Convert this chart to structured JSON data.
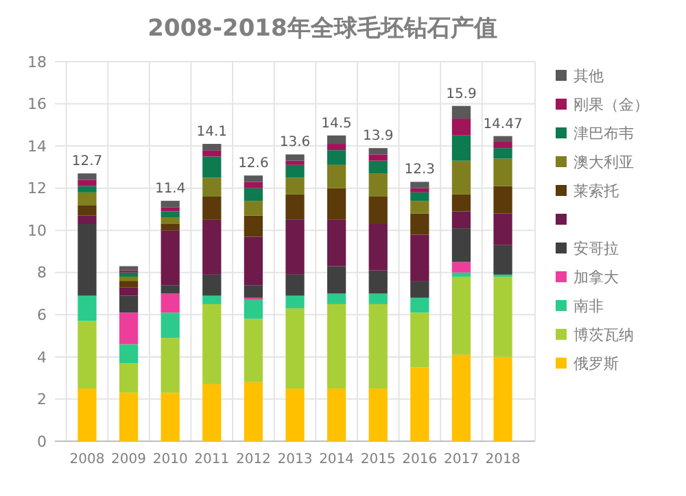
{
  "chart_data": {
    "type": "bar",
    "stacked": true,
    "title": "2008-2018年全球毛坯钻石产值",
    "categories": [
      "2008",
      "2009",
      "2010",
      "2011",
      "2012",
      "2013",
      "2014",
      "2015",
      "2016",
      "2017",
      "2018"
    ],
    "series": [
      {
        "name": "俄罗斯",
        "color": "#ffc000",
        "values": [
          2.5,
          2.3,
          2.3,
          2.7,
          2.8,
          2.5,
          2.5,
          2.5,
          3.5,
          4.1,
          4.0
        ]
      },
      {
        "name": "博茨瓦纳",
        "color": "#a9cf38",
        "values": [
          3.2,
          1.4,
          2.6,
          3.8,
          3.0,
          3.8,
          4.0,
          4.0,
          2.6,
          3.7,
          3.8
        ]
      },
      {
        "name": "南非",
        "color": "#2bcb8c",
        "values": [
          1.2,
          0.9,
          1.2,
          0.4,
          0.9,
          0.6,
          0.5,
          0.5,
          0.7,
          0.2,
          0.1
        ]
      },
      {
        "name": "加拿大",
        "color": "#ee3e9c",
        "values": [
          0,
          1.5,
          0.9,
          0,
          0.1,
          0,
          0,
          0,
          0,
          0.5,
          0
        ]
      },
      {
        "name": "安哥拉",
        "color": "#404040",
        "values": [
          3.4,
          0.8,
          0.4,
          1.0,
          0.6,
          1.0,
          1.3,
          1.1,
          0.8,
          1.6,
          1.4
        ]
      },
      {
        "color": "#6e1a4a",
        "values": [
          0.4,
          0.4,
          2.6,
          2.6,
          2.3,
          2.6,
          2.2,
          2.2,
          2.2,
          0.8,
          1.5
        ]
      },
      {
        "name": "莱索托",
        "color": "#5c3a0a",
        "values": [
          0.5,
          0.3,
          0.3,
          1.1,
          1.0,
          1.2,
          1.5,
          1.3,
          1.0,
          0.8,
          1.3
        ]
      },
      {
        "name": "澳大利亚",
        "color": "#7f7f1f",
        "values": [
          0.6,
          0.2,
          0.3,
          0.9,
          0.7,
          0.8,
          1.1,
          1.1,
          0.6,
          1.6,
          1.3
        ]
      },
      {
        "name": "津巴布韦",
        "color": "#0e7a4f",
        "values": [
          0.3,
          0.2,
          0.3,
          1.0,
          0.6,
          0.6,
          0.7,
          0.6,
          0.4,
          1.2,
          0.5
        ]
      },
      {
        "name": "刚果（金）",
        "color": "#a0145a",
        "values": [
          0.3,
          0.1,
          0.2,
          0.3,
          0.3,
          0.2,
          0.3,
          0.3,
          0.2,
          0.8,
          0.3
        ]
      },
      {
        "name": "其他",
        "color": "#595959",
        "values": [
          0.3,
          0.2,
          0.3,
          0.3,
          0.3,
          0.3,
          0.4,
          0.3,
          0.3,
          0.6,
          0.27
        ]
      }
    ],
    "totals": [
      "12.7",
      null,
      "11.4",
      "14.1",
      "12.6",
      "13.6",
      "14.5",
      "13.9",
      "12.3",
      "15.9",
      "14.47"
    ],
    "ylim": [
      0,
      18
    ],
    "yticks": [
      0,
      2,
      4,
      6,
      8,
      10,
      12,
      14,
      16,
      18
    ],
    "grid": true,
    "legend": "right"
  }
}
